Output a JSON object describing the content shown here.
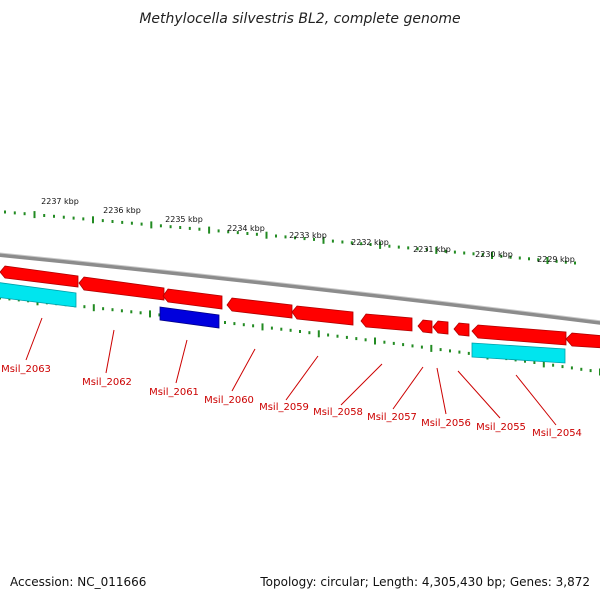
{
  "title": "Methylocella silvestris BL2, complete genome",
  "footer": {
    "accession": "Accession: NC_011666",
    "topology": "Topology: circular; Length: 4,305,430 bp; Genes: 3,872"
  },
  "kbp_labels": [
    "2237 kbp",
    "2236 kbp",
    "2235 kbp",
    "2234 kbp",
    "2233 kbp",
    "2232 kbp",
    "2231 kbp",
    "2230 kbp",
    "2229 kbp"
  ],
  "gene_labels": [
    "Msil_2063",
    "Msil_2062",
    "Msil_2061",
    "Msil_2060",
    "Msil_2059",
    "Msil_2058",
    "Msil_2057",
    "Msil_2056",
    "Msil_2055",
    "Msil_2054"
  ],
  "colors": {
    "cds_reverse": "#ff0000",
    "cds_blue": "#0000dd",
    "rna_cyan": "#00e5ee",
    "ticks": "#228b22",
    "backbone": "#888888",
    "label": "#cc0000"
  }
}
